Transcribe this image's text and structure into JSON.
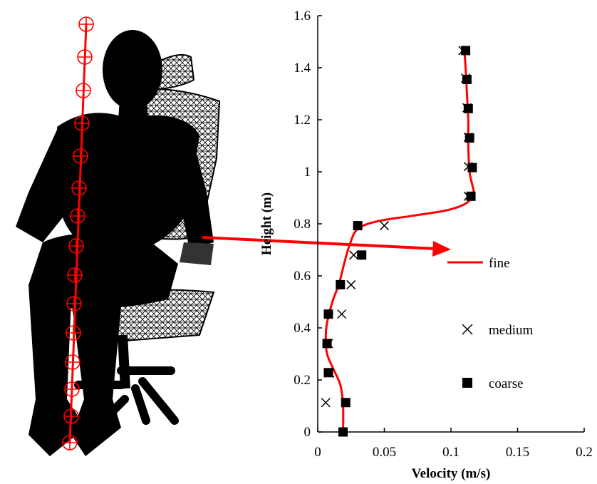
{
  "chart_data": {
    "type": "line",
    "xlabel": "Velocity (m/s)",
    "ylabel": "Height (m)",
    "xlim": [
      0,
      0.2
    ],
    "ylim": [
      0,
      1.6
    ],
    "xticks": [
      "0",
      "0.05",
      "0.1",
      "0.15",
      "0.2"
    ],
    "yticks": [
      "0",
      "0.2",
      "0.4",
      "0.6",
      "0.8",
      "1",
      "1.2",
      "1.4",
      "1.6"
    ],
    "grid": false,
    "legend_position": "right",
    "series": [
      {
        "name": "fine",
        "style": "line",
        "color": "#ff0000",
        "points": [
          [
            0.019,
            0.0
          ],
          [
            0.019,
            0.1
          ],
          [
            0.017,
            0.18
          ],
          [
            0.011,
            0.25
          ],
          [
            0.007,
            0.3
          ],
          [
            0.006,
            0.36
          ],
          [
            0.007,
            0.42
          ],
          [
            0.011,
            0.5
          ],
          [
            0.016,
            0.57
          ],
          [
            0.02,
            0.65
          ],
          [
            0.024,
            0.72
          ],
          [
            0.03,
            0.78
          ],
          [
            0.045,
            0.81
          ],
          [
            0.07,
            0.83
          ],
          [
            0.095,
            0.85
          ],
          [
            0.108,
            0.87
          ],
          [
            0.114,
            0.89
          ],
          [
            0.117,
            0.92
          ],
          [
            0.116,
            0.95
          ],
          [
            0.114,
            1.0
          ],
          [
            0.113,
            1.1
          ],
          [
            0.113,
            1.2
          ],
          [
            0.112,
            1.3
          ],
          [
            0.111,
            1.4
          ],
          [
            0.11,
            1.47
          ]
        ]
      },
      {
        "name": "medium",
        "style": "x",
        "color": "#000000",
        "points": [
          [
            0.019,
            0.0
          ],
          [
            0.006,
            0.113
          ],
          [
            0.009,
            0.226
          ],
          [
            0.008,
            0.34
          ],
          [
            0.018,
            0.453
          ],
          [
            0.025,
            0.566
          ],
          [
            0.027,
            0.68
          ],
          [
            0.05,
            0.793
          ],
          [
            0.113,
            0.906
          ],
          [
            0.113,
            1.02
          ],
          [
            0.113,
            1.133
          ],
          [
            0.112,
            1.246
          ],
          [
            0.111,
            1.36
          ],
          [
            0.109,
            1.466
          ]
        ]
      },
      {
        "name": "coarse",
        "style": "square",
        "color": "#000000",
        "points": [
          [
            0.019,
            0.0
          ],
          [
            0.021,
            0.113
          ],
          [
            0.008,
            0.228
          ],
          [
            0.007,
            0.34
          ],
          [
            0.008,
            0.453
          ],
          [
            0.017,
            0.566
          ],
          [
            0.033,
            0.68
          ],
          [
            0.03,
            0.793
          ],
          [
            0.115,
            0.906
          ],
          [
            0.116,
            1.016
          ],
          [
            0.114,
            1.13
          ],
          [
            0.113,
            1.243
          ],
          [
            0.112,
            1.355
          ],
          [
            0.111,
            1.466
          ]
        ]
      }
    ]
  }
}
